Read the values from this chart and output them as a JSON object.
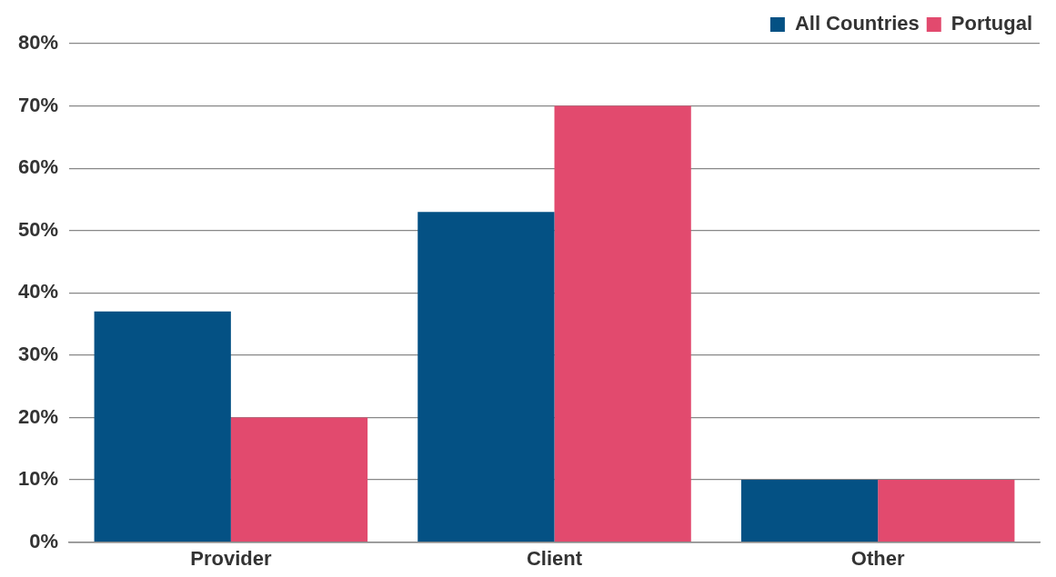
{
  "chart_data": {
    "type": "bar",
    "categories": [
      "Provider",
      "Client",
      "Other"
    ],
    "series": [
      {
        "name": "All Countries",
        "color": "#045184",
        "values": [
          37,
          53,
          10
        ]
      },
      {
        "name": "Portugal",
        "color": "#e24a6e",
        "values": [
          20,
          70,
          10
        ]
      }
    ],
    "ylim": [
      0,
      80
    ],
    "yticks": [
      {
        "value": 0,
        "label": "0%"
      },
      {
        "value": 10,
        "label": "10%"
      },
      {
        "value": 20,
        "label": "20%"
      },
      {
        "value": 30,
        "label": "30%"
      },
      {
        "value": 40,
        "label": "40%"
      },
      {
        "value": 50,
        "label": "50%"
      },
      {
        "value": 60,
        "label": "60%"
      },
      {
        "value": 70,
        "label": "70%"
      },
      {
        "value": 80,
        "label": "80%"
      }
    ],
    "grid": "y",
    "legend": "top right"
  }
}
